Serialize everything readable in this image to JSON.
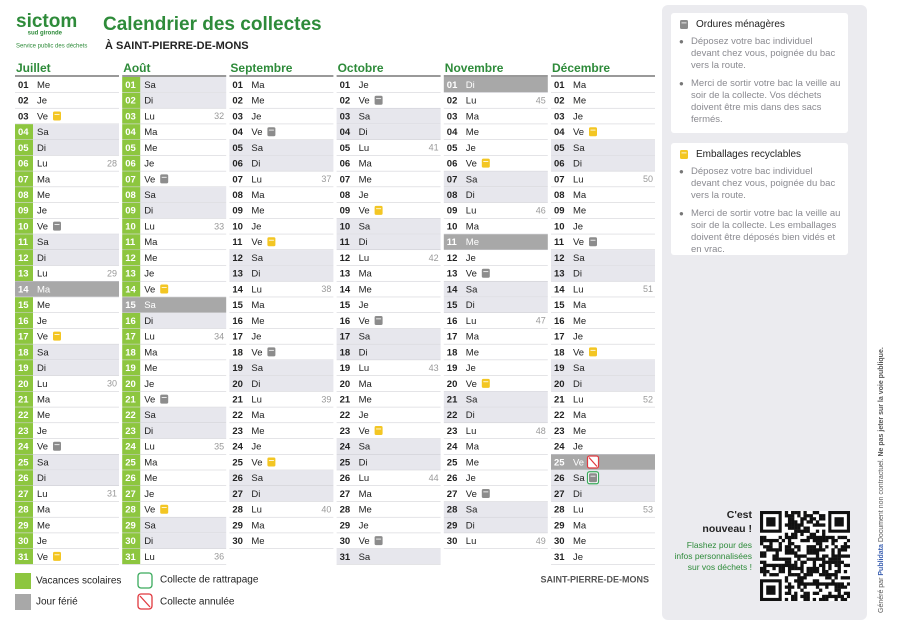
{
  "header": {
    "logo": "sictom",
    "logo_sub": "sud gironde",
    "logo_tag": "Service public des déchets",
    "title": "Calendrier des collectes",
    "subtitle": "À SAINT-PIERRE-DE-MONS"
  },
  "colors": {
    "om": "#8c8c8c",
    "rec": "#f3c623",
    "hol": "#8dc63f",
    "off": "#a8a8a8",
    "we": "#e7e7ed",
    "green": "#2e8b3a",
    "rattrapage": "#3aaa5c",
    "annulee": "#e0383e"
  },
  "months": [
    {
      "name": "Juillet",
      "days": [
        {
          "d": "01",
          "wd": "Me"
        },
        {
          "d": "02",
          "wd": "Je"
        },
        {
          "d": "03",
          "wd": "Ve",
          "bin": "rec"
        },
        {
          "d": "04",
          "wd": "Sa",
          "hol": true,
          "we": true
        },
        {
          "d": "05",
          "wd": "Di",
          "hol": true,
          "we": true
        },
        {
          "d": "06",
          "wd": "Lu",
          "wk": 28,
          "hol": true
        },
        {
          "d": "07",
          "wd": "Ma",
          "hol": true
        },
        {
          "d": "08",
          "wd": "Me",
          "hol": true
        },
        {
          "d": "09",
          "wd": "Je",
          "hol": true
        },
        {
          "d": "10",
          "wd": "Ve",
          "bin": "om",
          "hol": true
        },
        {
          "d": "11",
          "wd": "Sa",
          "hol": true,
          "we": true
        },
        {
          "d": "12",
          "wd": "Di",
          "hol": true,
          "we": true
        },
        {
          "d": "13",
          "wd": "Lu",
          "wk": 29,
          "hol": true
        },
        {
          "d": "14",
          "wd": "Ma",
          "off": true
        },
        {
          "d": "15",
          "wd": "Me",
          "hol": true
        },
        {
          "d": "16",
          "wd": "Je",
          "hol": true
        },
        {
          "d": "17",
          "wd": "Ve",
          "bin": "rec",
          "hol": true
        },
        {
          "d": "18",
          "wd": "Sa",
          "hol": true,
          "we": true
        },
        {
          "d": "19",
          "wd": "Di",
          "hol": true,
          "we": true
        },
        {
          "d": "20",
          "wd": "Lu",
          "wk": 30,
          "hol": true
        },
        {
          "d": "21",
          "wd": "Ma",
          "hol": true
        },
        {
          "d": "22",
          "wd": "Me",
          "hol": true
        },
        {
          "d": "23",
          "wd": "Je",
          "hol": true
        },
        {
          "d": "24",
          "wd": "Ve",
          "bin": "om",
          "hol": true
        },
        {
          "d": "25",
          "wd": "Sa",
          "hol": true,
          "we": true
        },
        {
          "d": "26",
          "wd": "Di",
          "hol": true,
          "we": true
        },
        {
          "d": "27",
          "wd": "Lu",
          "wk": 31,
          "hol": true
        },
        {
          "d": "28",
          "wd": "Ma",
          "hol": true
        },
        {
          "d": "29",
          "wd": "Me",
          "hol": true
        },
        {
          "d": "30",
          "wd": "Je",
          "hol": true
        },
        {
          "d": "31",
          "wd": "Ve",
          "bin": "rec",
          "hol": true
        }
      ]
    },
    {
      "name": "Août",
      "days": [
        {
          "d": "01",
          "wd": "Sa",
          "hol": true,
          "we": true
        },
        {
          "d": "02",
          "wd": "Di",
          "hol": true,
          "we": true
        },
        {
          "d": "03",
          "wd": "Lu",
          "wk": 32,
          "hol": true
        },
        {
          "d": "04",
          "wd": "Ma",
          "hol": true
        },
        {
          "d": "05",
          "wd": "Me",
          "hol": true
        },
        {
          "d": "06",
          "wd": "Je",
          "hol": true
        },
        {
          "d": "07",
          "wd": "Ve",
          "bin": "om",
          "hol": true
        },
        {
          "d": "08",
          "wd": "Sa",
          "hol": true,
          "we": true
        },
        {
          "d": "09",
          "wd": "Di",
          "hol": true,
          "we": true
        },
        {
          "d": "10",
          "wd": "Lu",
          "wk": 33,
          "hol": true
        },
        {
          "d": "11",
          "wd": "Ma",
          "hol": true
        },
        {
          "d": "12",
          "wd": "Me",
          "hol": true
        },
        {
          "d": "13",
          "wd": "Je",
          "hol": true
        },
        {
          "d": "14",
          "wd": "Ve",
          "bin": "rec",
          "hol": true
        },
        {
          "d": "15",
          "wd": "Sa",
          "off": true
        },
        {
          "d": "16",
          "wd": "Di",
          "hol": true,
          "we": true
        },
        {
          "d": "17",
          "wd": "Lu",
          "wk": 34,
          "hol": true
        },
        {
          "d": "18",
          "wd": "Ma",
          "hol": true
        },
        {
          "d": "19",
          "wd": "Me",
          "hol": true
        },
        {
          "d": "20",
          "wd": "Je",
          "hol": true
        },
        {
          "d": "21",
          "wd": "Ve",
          "bin": "om",
          "hol": true
        },
        {
          "d": "22",
          "wd": "Sa",
          "hol": true,
          "we": true
        },
        {
          "d": "23",
          "wd": "Di",
          "hol": true,
          "we": true
        },
        {
          "d": "24",
          "wd": "Lu",
          "wk": 35,
          "hol": true
        },
        {
          "d": "25",
          "wd": "Ma",
          "hol": true
        },
        {
          "d": "26",
          "wd": "Me",
          "hol": true
        },
        {
          "d": "27",
          "wd": "Je",
          "hol": true
        },
        {
          "d": "28",
          "wd": "Ve",
          "bin": "rec",
          "hol": true
        },
        {
          "d": "29",
          "wd": "Sa",
          "hol": true,
          "we": true
        },
        {
          "d": "30",
          "wd": "Di",
          "hol": true,
          "we": true
        },
        {
          "d": "31",
          "wd": "Lu",
          "wk": 36,
          "hol": true
        }
      ]
    },
    {
      "name": "Septembre",
      "days": [
        {
          "d": "01",
          "wd": "Ma"
        },
        {
          "d": "02",
          "wd": "Me"
        },
        {
          "d": "03",
          "wd": "Je"
        },
        {
          "d": "04",
          "wd": "Ve",
          "bin": "om"
        },
        {
          "d": "05",
          "wd": "Sa",
          "we": true
        },
        {
          "d": "06",
          "wd": "Di",
          "we": true
        },
        {
          "d": "07",
          "wd": "Lu",
          "wk": 37
        },
        {
          "d": "08",
          "wd": "Ma"
        },
        {
          "d": "09",
          "wd": "Me"
        },
        {
          "d": "10",
          "wd": "Je"
        },
        {
          "d": "11",
          "wd": "Ve",
          "bin": "rec"
        },
        {
          "d": "12",
          "wd": "Sa",
          "we": true
        },
        {
          "d": "13",
          "wd": "Di",
          "we": true
        },
        {
          "d": "14",
          "wd": "Lu",
          "wk": 38
        },
        {
          "d": "15",
          "wd": "Ma"
        },
        {
          "d": "16",
          "wd": "Me"
        },
        {
          "d": "17",
          "wd": "Je"
        },
        {
          "d": "18",
          "wd": "Ve",
          "bin": "om"
        },
        {
          "d": "19",
          "wd": "Sa",
          "we": true
        },
        {
          "d": "20",
          "wd": "Di",
          "we": true
        },
        {
          "d": "21",
          "wd": "Lu",
          "wk": 39
        },
        {
          "d": "22",
          "wd": "Ma"
        },
        {
          "d": "23",
          "wd": "Me"
        },
        {
          "d": "24",
          "wd": "Je"
        },
        {
          "d": "25",
          "wd": "Ve",
          "bin": "rec"
        },
        {
          "d": "26",
          "wd": "Sa",
          "we": true
        },
        {
          "d": "27",
          "wd": "Di",
          "we": true
        },
        {
          "d": "28",
          "wd": "Lu",
          "wk": 40
        },
        {
          "d": "29",
          "wd": "Ma"
        },
        {
          "d": "30",
          "wd": "Me"
        }
      ]
    },
    {
      "name": "Octobre",
      "days": [
        {
          "d": "01",
          "wd": "Je"
        },
        {
          "d": "02",
          "wd": "Ve",
          "bin": "om"
        },
        {
          "d": "03",
          "wd": "Sa",
          "we": true
        },
        {
          "d": "04",
          "wd": "Di",
          "we": true
        },
        {
          "d": "05",
          "wd": "Lu",
          "wk": 41
        },
        {
          "d": "06",
          "wd": "Ma"
        },
        {
          "d": "07",
          "wd": "Me"
        },
        {
          "d": "08",
          "wd": "Je"
        },
        {
          "d": "09",
          "wd": "Ve",
          "bin": "rec"
        },
        {
          "d": "10",
          "wd": "Sa",
          "we": true
        },
        {
          "d": "11",
          "wd": "Di",
          "we": true
        },
        {
          "d": "12",
          "wd": "Lu",
          "wk": 42
        },
        {
          "d": "13",
          "wd": "Ma"
        },
        {
          "d": "14",
          "wd": "Me"
        },
        {
          "d": "15",
          "wd": "Je"
        },
        {
          "d": "16",
          "wd": "Ve",
          "bin": "om"
        },
        {
          "d": "17",
          "wd": "Sa",
          "we": true
        },
        {
          "d": "18",
          "wd": "Di",
          "we": true
        },
        {
          "d": "19",
          "wd": "Lu",
          "wk": 43
        },
        {
          "d": "20",
          "wd": "Ma"
        },
        {
          "d": "21",
          "wd": "Me"
        },
        {
          "d": "22",
          "wd": "Je"
        },
        {
          "d": "23",
          "wd": "Ve",
          "bin": "rec"
        },
        {
          "d": "24",
          "wd": "Sa",
          "we": true
        },
        {
          "d": "25",
          "wd": "Di",
          "we": true
        },
        {
          "d": "26",
          "wd": "Lu",
          "wk": 44
        },
        {
          "d": "27",
          "wd": "Ma"
        },
        {
          "d": "28",
          "wd": "Me"
        },
        {
          "d": "29",
          "wd": "Je"
        },
        {
          "d": "30",
          "wd": "Ve",
          "bin": "om"
        },
        {
          "d": "31",
          "wd": "Sa",
          "we": true
        }
      ]
    },
    {
      "name": "Novembre",
      "days": [
        {
          "d": "01",
          "wd": "Di",
          "off": true
        },
        {
          "d": "02",
          "wd": "Lu",
          "wk": 45
        },
        {
          "d": "03",
          "wd": "Ma"
        },
        {
          "d": "04",
          "wd": "Me"
        },
        {
          "d": "05",
          "wd": "Je"
        },
        {
          "d": "06",
          "wd": "Ve",
          "bin": "rec"
        },
        {
          "d": "07",
          "wd": "Sa",
          "we": true
        },
        {
          "d": "08",
          "wd": "Di",
          "we": true
        },
        {
          "d": "09",
          "wd": "Lu",
          "wk": 46
        },
        {
          "d": "10",
          "wd": "Ma"
        },
        {
          "d": "11",
          "wd": "Me",
          "off": true
        },
        {
          "d": "12",
          "wd": "Je"
        },
        {
          "d": "13",
          "wd": "Ve",
          "bin": "om"
        },
        {
          "d": "14",
          "wd": "Sa",
          "we": true
        },
        {
          "d": "15",
          "wd": "Di",
          "we": true
        },
        {
          "d": "16",
          "wd": "Lu",
          "wk": 47
        },
        {
          "d": "17",
          "wd": "Ma"
        },
        {
          "d": "18",
          "wd": "Me"
        },
        {
          "d": "19",
          "wd": "Je"
        },
        {
          "d": "20",
          "wd": "Ve",
          "bin": "rec"
        },
        {
          "d": "21",
          "wd": "Sa",
          "we": true
        },
        {
          "d": "22",
          "wd": "Di",
          "we": true
        },
        {
          "d": "23",
          "wd": "Lu",
          "wk": 48
        },
        {
          "d": "24",
          "wd": "Ma"
        },
        {
          "d": "25",
          "wd": "Me"
        },
        {
          "d": "26",
          "wd": "Je"
        },
        {
          "d": "27",
          "wd": "Ve",
          "bin": "om"
        },
        {
          "d": "28",
          "wd": "Sa",
          "we": true
        },
        {
          "d": "29",
          "wd": "Di",
          "we": true
        },
        {
          "d": "30",
          "wd": "Lu",
          "wk": 49
        }
      ]
    },
    {
      "name": "Décembre",
      "days": [
        {
          "d": "01",
          "wd": "Ma"
        },
        {
          "d": "02",
          "wd": "Me"
        },
        {
          "d": "03",
          "wd": "Je"
        },
        {
          "d": "04",
          "wd": "Ve",
          "bin": "rec"
        },
        {
          "d": "05",
          "wd": "Sa",
          "we": true
        },
        {
          "d": "06",
          "wd": "Di",
          "we": true
        },
        {
          "d": "07",
          "wd": "Lu",
          "wk": 50
        },
        {
          "d": "08",
          "wd": "Ma"
        },
        {
          "d": "09",
          "wd": "Me"
        },
        {
          "d": "10",
          "wd": "Je"
        },
        {
          "d": "11",
          "wd": "Ve",
          "bin": "om"
        },
        {
          "d": "12",
          "wd": "Sa",
          "we": true
        },
        {
          "d": "13",
          "wd": "Di",
          "we": true
        },
        {
          "d": "14",
          "wd": "Lu",
          "wk": 51
        },
        {
          "d": "15",
          "wd": "Ma"
        },
        {
          "d": "16",
          "wd": "Me"
        },
        {
          "d": "17",
          "wd": "Je"
        },
        {
          "d": "18",
          "wd": "Ve",
          "bin": "rec"
        },
        {
          "d": "19",
          "wd": "Sa",
          "we": true
        },
        {
          "d": "20",
          "wd": "Di",
          "we": true
        },
        {
          "d": "21",
          "wd": "Lu",
          "wk": 52
        },
        {
          "d": "22",
          "wd": "Ma"
        },
        {
          "d": "23",
          "wd": "Me"
        },
        {
          "d": "24",
          "wd": "Je"
        },
        {
          "d": "25",
          "wd": "Ve",
          "off": true,
          "extra": "annulee"
        },
        {
          "d": "26",
          "wd": "Sa",
          "we": true,
          "bin": "om",
          "extra": "rattrapage"
        },
        {
          "d": "27",
          "wd": "Di",
          "we": true
        },
        {
          "d": "28",
          "wd": "Lu",
          "wk": 53
        },
        {
          "d": "29",
          "wd": "Ma"
        },
        {
          "d": "30",
          "wd": "Me"
        },
        {
          "d": "31",
          "wd": "Je"
        }
      ]
    }
  ],
  "legend": {
    "hol": "Vacances scolaires",
    "off": "Jour férié",
    "rattrapage": "Collecte de rattrapage",
    "annulee": "Collecte annulée"
  },
  "commune": "SAINT-PIERRE-DE-MONS",
  "sidebar": {
    "sections": [
      {
        "title": "Ordures ménagères",
        "bin": "om",
        "items": [
          "Déposez votre bac individuel devant chez vous, poignée du bac vers la route.",
          "Merci de sortir votre bac la veille au soir de la collecte. Vos déchets doivent être mis dans des sacs fermés."
        ]
      },
      {
        "title": "Emballages recyclables",
        "bin": "rec",
        "items": [
          "Déposez votre bac individuel devant chez vous, poignée du bac vers la route.",
          "Merci de sortir votre bac la veille au soir de la collecte. Les emballages doivent être déposés bien vidés et en vrac."
        ]
      }
    ],
    "new_title": "C'est nouveau !",
    "new_text": "Flashez pour des infos personnalisées sur vos déchets !"
  },
  "footer": {
    "generated": "Généré par",
    "brand": "Publidata",
    "disclaimer": "Document non contractuel.",
    "warning": "Ne pas jeter sur la voie publique."
  }
}
